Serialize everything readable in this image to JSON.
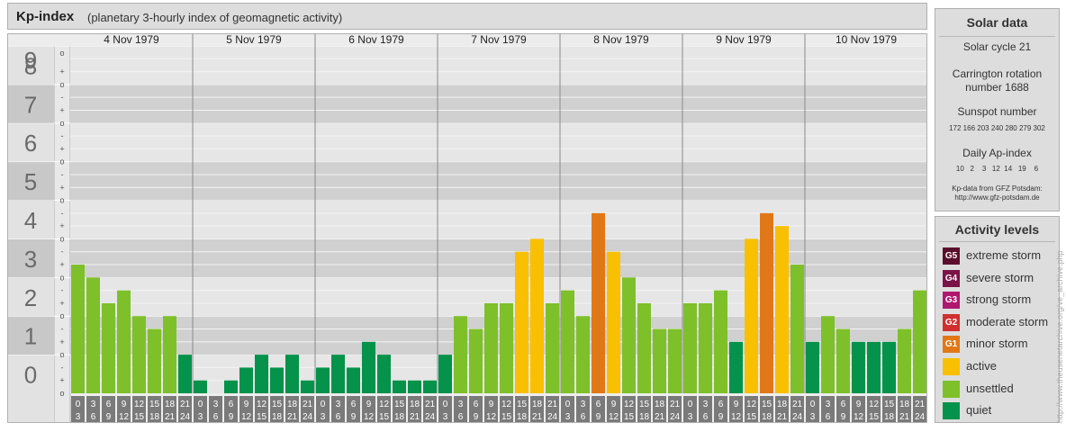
{
  "header": {
    "title": "Kp-index",
    "subtitle": "(planetary 3-hourly index of geomagnetic activity)"
  },
  "chart_data": {
    "type": "bar",
    "ylim": [
      0,
      9
    ],
    "y_ticks": [
      "0",
      "1",
      "2",
      "3",
      "4",
      "5",
      "6",
      "7",
      "8",
      "9"
    ],
    "minor_tick_labels": [
      "+",
      "o",
      "-"
    ],
    "days": [
      "4 Nov 1979",
      "5 Nov 1979",
      "6 Nov 1979",
      "7 Nov 1979",
      "8 Nov 1979",
      "9 Nov 1979",
      "10 Nov 1979"
    ],
    "hour_labels_top": [
      "0",
      "3",
      "6",
      "9",
      "12",
      "15",
      "18",
      "21"
    ],
    "hour_labels_bottom": [
      "3",
      "6",
      "9",
      "12",
      "15",
      "18",
      "21",
      "24"
    ],
    "values": [
      3.333,
      3.0,
      2.333,
      2.667,
      2.0,
      1.667,
      2.0,
      1.0,
      0.333,
      0.0,
      0.333,
      0.667,
      1.0,
      0.667,
      1.0,
      0.333,
      0.667,
      1.0,
      0.667,
      1.333,
      1.0,
      0.333,
      0.333,
      0.333,
      1.0,
      2.0,
      1.667,
      2.333,
      2.333,
      3.667,
      4.0,
      2.333,
      2.667,
      2.0,
      4.667,
      3.667,
      3.0,
      2.333,
      1.667,
      1.667,
      2.333,
      2.333,
      2.667,
      1.333,
      4.0,
      4.667,
      4.333,
      3.333,
      1.333,
      2.0,
      1.667,
      1.333,
      1.333,
      1.333,
      1.667,
      2.667
    ]
  },
  "solar": {
    "title": "Solar data",
    "cycle": "Solar cycle 21",
    "carrington_line1": "Carrington rotation",
    "carrington_line2": "number 1688",
    "sunspot_title": "Sunspot number",
    "sunspot_values": "172 166 203 240 280 279 302",
    "ap_title": "Daily Ap-index",
    "ap_values": "10   2    3   12  14   19    6",
    "source_line1": "Kp-data from GFZ Potsdam:",
    "source_line2": "http://www.gfz-potsdam.de"
  },
  "legend": {
    "title": "Activity levels",
    "items": [
      {
        "code": "G5",
        "label": "extreme storm",
        "color": "#5b0f2c"
      },
      {
        "code": "G4",
        "label": "severe storm",
        "color": "#7b1248"
      },
      {
        "code": "G3",
        "label": "strong storm",
        "color": "#b01870"
      },
      {
        "code": "G2",
        "label": "moderate storm",
        "color": "#d03030"
      },
      {
        "code": "G1",
        "label": "minor storm",
        "color": "#e07818"
      },
      {
        "code": "",
        "label": "active",
        "color": "#f8c000"
      },
      {
        "code": "",
        "label": "unsettled",
        "color": "#7ec02a"
      },
      {
        "code": "",
        "label": "quiet",
        "color": "#05924a"
      }
    ]
  },
  "credit": "http://www.theusenetarchive.org/ve_archive.php"
}
